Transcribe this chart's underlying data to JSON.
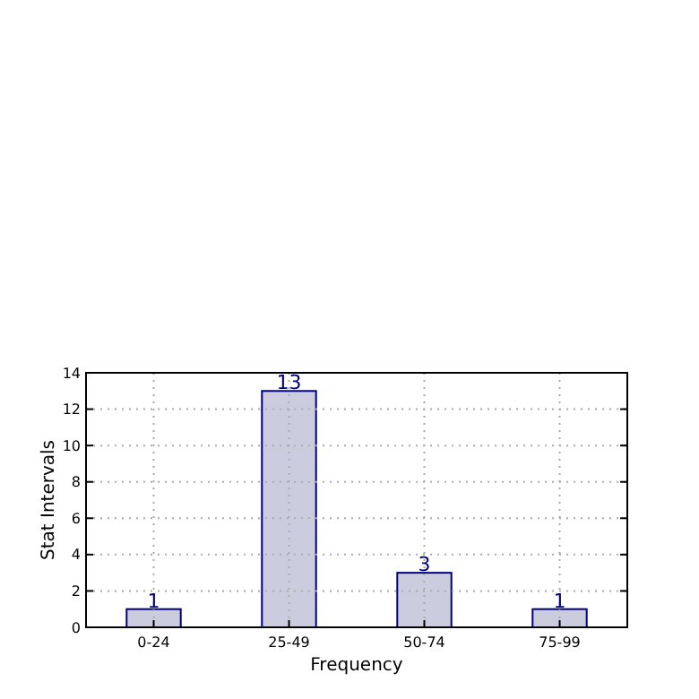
{
  "chart_data": {
    "type": "bar",
    "xlabel": "Frequency",
    "ylabel": "Stat Intervals",
    "categories": [
      "0-24",
      "25-49",
      "50-74",
      "75-99"
    ],
    "values": [
      1,
      13,
      3,
      1
    ],
    "color": "#ccccdf",
    "ylim": [
      0,
      14
    ],
    "yticks": [
      0,
      2,
      4,
      6,
      8,
      10,
      12,
      14
    ],
    "grid": true,
    "data_labels": true
  }
}
